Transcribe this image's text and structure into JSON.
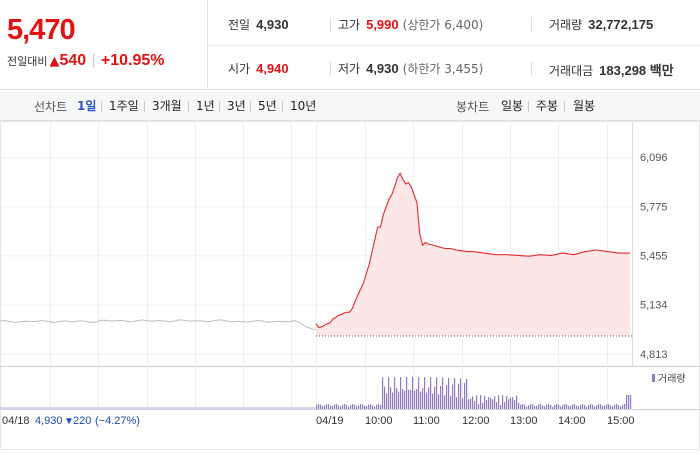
{
  "price": {
    "current": "5,470",
    "change_label": "전일대비",
    "change_arrow": "▲",
    "change_value": "540",
    "change_pct": "+10.95%"
  },
  "info": {
    "prev_close_label": "전일",
    "prev_close": "4,930",
    "high_label": "고가",
    "high": "5,990",
    "upper_limit": "(상한가 6,400)",
    "volume_label": "거래량",
    "volume": "32,772,175",
    "open_label": "시가",
    "open": "4,940",
    "low_label": "저가",
    "low": "4,930",
    "lower_limit": "(하한가 3,455)",
    "trade_value_label": "거래대금",
    "trade_value": "183,298 백만"
  },
  "tabs": {
    "line_label": "선차트",
    "line_tabs": [
      "1일",
      "1주일",
      "3개월",
      "1년",
      "3년",
      "5년",
      "10년"
    ],
    "line_selected": 0,
    "candle_label": "봉차트",
    "candle_tabs": [
      "일봉",
      "주봉",
      "월봉"
    ]
  },
  "chart_data": {
    "type": "area",
    "y_ticks": [
      "6,096",
      "5,775",
      "5,455",
      "5,134",
      "4,813"
    ],
    "ylim": [
      4813,
      6096
    ],
    "prev_close": 4930,
    "x_ticks": [
      "04/19",
      "10:00",
      "11:00",
      "12:00",
      "13:00",
      "14:00",
      "15:00"
    ],
    "volume_legend": "거래량",
    "prev_day": {
      "date": "04/18",
      "close": "4,930",
      "arrow": "▼",
      "change": "220",
      "pct": "(−4.27%)"
    },
    "series": [
      {
        "values": [
          [
            0,
            5010
          ],
          [
            0.25,
            4985
          ],
          [
            0.5,
            4990
          ],
          [
            0.75,
            5000
          ],
          [
            1,
            5010
          ],
          [
            1.25,
            5016
          ],
          [
            1.5,
            5040
          ],
          [
            1.75,
            5050
          ],
          [
            2,
            5065
          ],
          [
            2.25,
            5070
          ],
          [
            2.5,
            5080
          ],
          [
            2.75,
            5085
          ],
          [
            3,
            5085
          ],
          [
            3.25,
            5110
          ],
          [
            3.5,
            5160
          ],
          [
            3.75,
            5200
          ],
          [
            4,
            5240
          ],
          [
            4.25,
            5280
          ],
          [
            4.5,
            5340
          ],
          [
            4.75,
            5400
          ],
          [
            5,
            5480
          ],
          [
            5.25,
            5560
          ],
          [
            5.5,
            5640
          ],
          [
            5.75,
            5640
          ],
          [
            6,
            5720
          ],
          [
            6.25,
            5770
          ],
          [
            6.5,
            5820
          ],
          [
            6.75,
            5850
          ],
          [
            7,
            5900
          ],
          [
            7.25,
            5960
          ],
          [
            7.5,
            5990
          ],
          [
            7.75,
            5950
          ],
          [
            8,
            5920
          ],
          [
            8.25,
            5930
          ],
          [
            8.5,
            5900
          ],
          [
            8.75,
            5850
          ],
          [
            9,
            5800
          ],
          [
            9.25,
            5600
          ],
          [
            9.5,
            5520
          ],
          [
            9.75,
            5540
          ],
          [
            10,
            5530
          ],
          [
            10.5,
            5520
          ],
          [
            11,
            5510
          ],
          [
            11.5,
            5500
          ],
          [
            12,
            5500
          ],
          [
            12.5,
            5490
          ],
          [
            13,
            5485
          ],
          [
            13.5,
            5480
          ],
          [
            14,
            5480
          ],
          [
            15,
            5470
          ],
          [
            16,
            5460
          ],
          [
            17,
            5460
          ],
          [
            18,
            5455
          ],
          [
            19,
            5450
          ],
          [
            20,
            5460
          ],
          [
            21,
            5455
          ],
          [
            22,
            5470
          ],
          [
            23,
            5460
          ],
          [
            24,
            5480
          ],
          [
            25,
            5490
          ],
          [
            26,
            5480
          ],
          [
            27,
            5470
          ],
          [
            28,
            5470
          ]
        ]
      }
    ]
  }
}
